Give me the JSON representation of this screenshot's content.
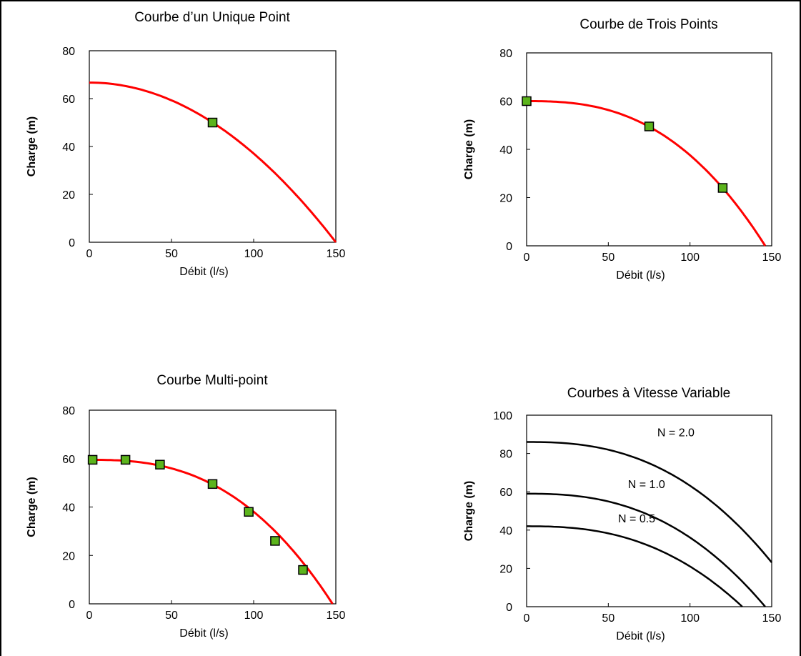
{
  "chart_data": [
    {
      "type": "line",
      "title": "Courbe d’un Unique Point",
      "xlabel": "Débit (l/s)",
      "ylabel": "Charge (m)",
      "xlim": [
        0,
        150
      ],
      "ylim": [
        0,
        80
      ],
      "xticks": [
        "0",
        "50",
        "100",
        "150"
      ],
      "yticks": [
        "0",
        "20",
        "40",
        "60",
        "80"
      ],
      "curve_color": "#ff0000",
      "marker_color": "#5cb41c",
      "curve": {
        "shutoff_head": 66.7,
        "max_flow": 150,
        "exponent": 2
      },
      "points": [
        {
          "x": 75,
          "y": 50
        }
      ]
    },
    {
      "type": "line",
      "title": "Courbe de Trois Points",
      "xlabel": "Débit (l/s)",
      "ylabel": "Charge (m)",
      "xlim": [
        0,
        150
      ],
      "ylim": [
        0,
        80
      ],
      "xticks": [
        "0",
        "50",
        "100",
        "150"
      ],
      "yticks": [
        "0",
        "20",
        "40",
        "60",
        "80"
      ],
      "curve_color": "#ff0000",
      "marker_color": "#5cb41c",
      "curve": {
        "shutoff_head": 60,
        "max_flow": 146,
        "exponent": 2.6
      },
      "points": [
        {
          "x": 0,
          "y": 60
        },
        {
          "x": 75,
          "y": 49.5
        },
        {
          "x": 120,
          "y": 24
        }
      ]
    },
    {
      "type": "line",
      "title": "Courbe Multi-point",
      "xlabel": "Débit (l/s)",
      "ylabel": "Charge (m)",
      "xlim": [
        0,
        150
      ],
      "ylim": [
        0,
        80
      ],
      "xticks": [
        "0",
        "50",
        "100",
        "150"
      ],
      "yticks": [
        "0",
        "20",
        "40",
        "60",
        "80"
      ],
      "curve_color": "#ff0000",
      "marker_color": "#5cb41c",
      "curve": {
        "shutoff_head": 59.5,
        "max_flow": 148,
        "exponent": 2.6
      },
      "points": [
        {
          "x": 2,
          "y": 59.5
        },
        {
          "x": 22,
          "y": 59.5
        },
        {
          "x": 43,
          "y": 57.5
        },
        {
          "x": 75,
          "y": 49.5
        },
        {
          "x": 97,
          "y": 38
        },
        {
          "x": 113,
          "y": 26
        },
        {
          "x": 130,
          "y": 14
        }
      ]
    },
    {
      "type": "line",
      "title": "Courbes à Vitesse Variable",
      "xlabel": "Débit (l/s)",
      "ylabel": "Charge (m)",
      "xlim": [
        0,
        150
      ],
      "ylim": [
        0,
        100
      ],
      "xticks": [
        "0",
        "50",
        "100",
        "150"
      ],
      "yticks": [
        "0",
        "20",
        "40",
        "60",
        "80",
        "100"
      ],
      "curve_color": "#000000",
      "series": [
        {
          "label": "N = 2.0",
          "label_at": {
            "x": 80,
            "y": 89
          },
          "shutoff_head": 86,
          "max_flow": 170,
          "exponent": 2.5
        },
        {
          "label": "N = 1.0",
          "label_at": {
            "x": 62,
            "y": 62
          },
          "shutoff_head": 59,
          "max_flow": 146,
          "exponent": 2.5
        },
        {
          "label": "N = 0.5",
          "label_at": {
            "x": 56,
            "y": 44
          },
          "shutoff_head": 42,
          "max_flow": 132,
          "exponent": 2.5
        }
      ]
    }
  ]
}
